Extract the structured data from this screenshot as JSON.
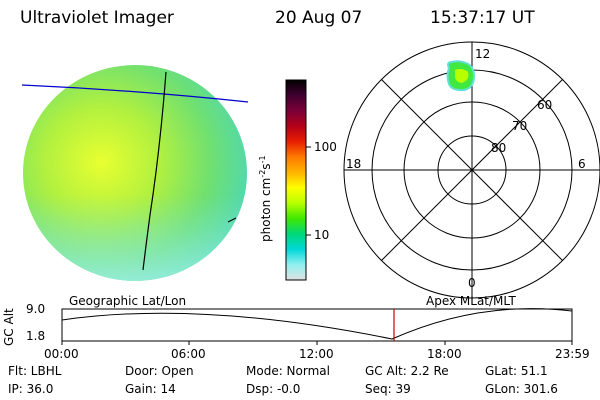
{
  "header": {
    "instrument": "Ultraviolet Imager",
    "date": "20 Aug 07",
    "time": "15:37:17 UT"
  },
  "colorbar": {
    "label": "photon cm",
    "label_sup1": "-2",
    "label_mid": "s",
    "label_sup2": "-1",
    "ticks": [
      "100",
      "10"
    ],
    "colors": [
      "#000000",
      "#400030",
      "#7a0038",
      "#b40018",
      "#e81e00",
      "#ff7a00",
      "#ffb400",
      "#ffff00",
      "#b8ff00",
      "#40e800",
      "#00d878",
      "#00d8d8",
      "#90f0f0",
      "#e0e0e0"
    ]
  },
  "polar": {
    "mlt_labels": {
      "top": "12",
      "bottom": "0",
      "left": "18",
      "right": "6"
    },
    "lat_labels": [
      "60",
      "70",
      "80"
    ]
  },
  "timeline": {
    "left_title": "Geographic Lat/Lon",
    "right_title": "Apex MLat/MLT",
    "ylabel": "GC Alt",
    "yticks": [
      "9.0",
      "1.8"
    ],
    "xticks": [
      "00:00",
      "06:00",
      "12:00",
      "18:00",
      "23:59"
    ],
    "current_time_fraction": 0.6509
  },
  "info": {
    "row1": [
      "Flt: LBHL",
      "Door: Open",
      "Mode: Normal",
      "GC Alt: 2.2 Re",
      "GLat:  51.1"
    ],
    "row2": [
      "IP: 36.0",
      "Gain: 14",
      "Dsp:   -0.0",
      "Seq: 39",
      "GLon: 301.6"
    ]
  }
}
